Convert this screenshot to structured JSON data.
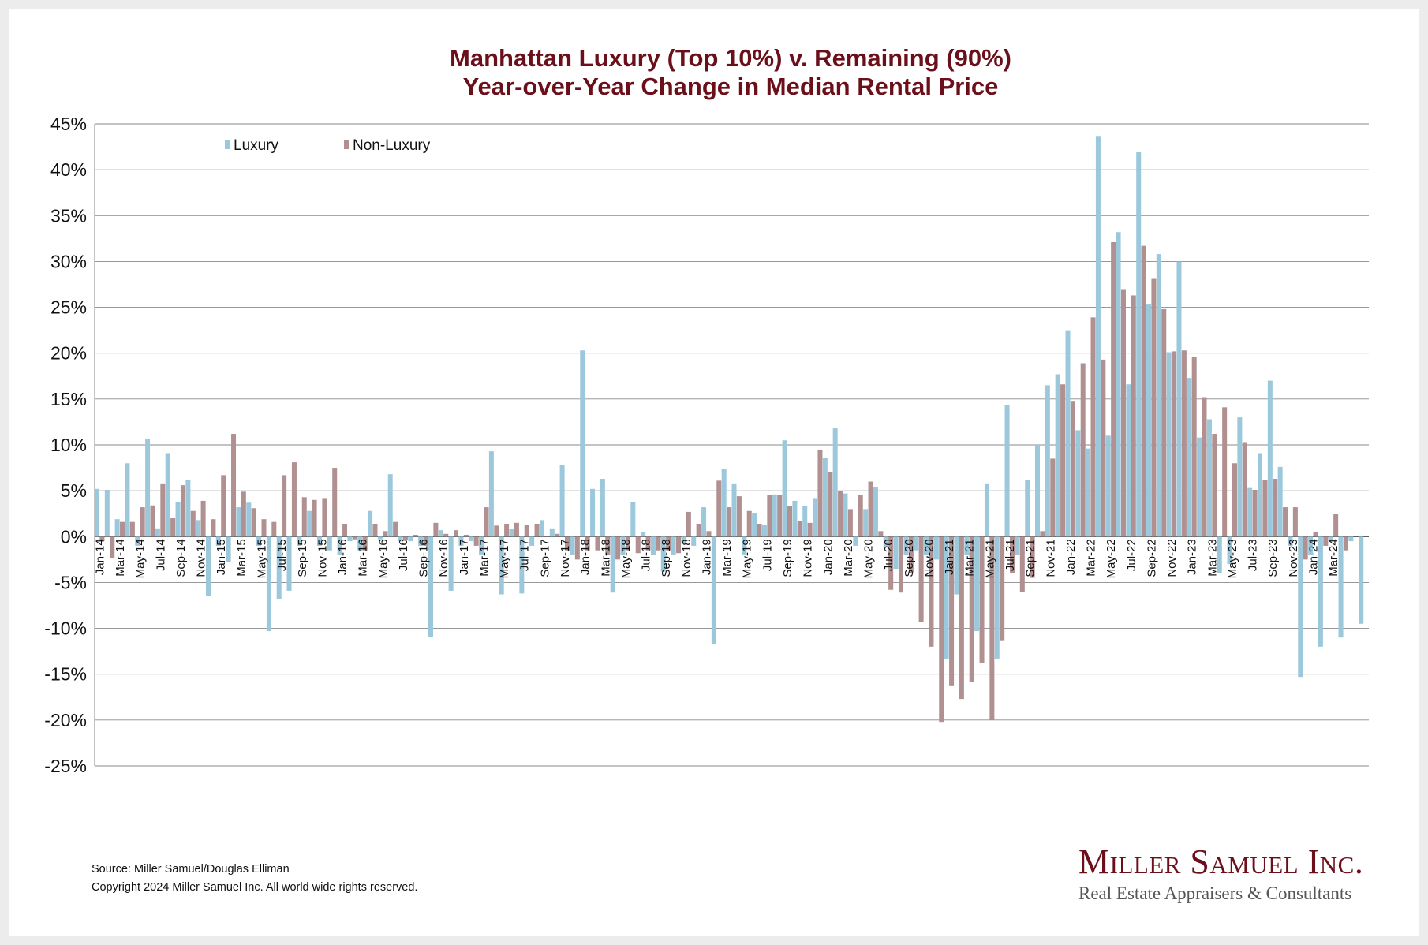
{
  "chart_data": {
    "type": "bar",
    "title": "Manhattan Luxury (Top 10%) v. Remaining (90%)",
    "subtitle": "Year-over-Year Change in Median Rental Price",
    "xlabel": "",
    "ylabel": "",
    "ylim": [
      -25,
      45
    ],
    "yticks": [
      "45%",
      "40%",
      "35%",
      "30%",
      "25%",
      "20%",
      "15%",
      "10%",
      "5%",
      "0%",
      "-5%",
      "-10%",
      "-15%",
      "-20%",
      "-25%"
    ],
    "grid": true,
    "legend_position": "top-left",
    "tick_labels": [
      "Jan-14",
      "Mar-14",
      "May-14",
      "Jul-14",
      "Sep-14",
      "Nov-14",
      "Jan-15",
      "Mar-15",
      "May-15",
      "Jul-15",
      "Sep-15",
      "Nov-15",
      "Jan-16",
      "Mar-16",
      "May-16",
      "Jul-16",
      "Sep-16",
      "Nov-16",
      "Jan-17",
      "Mar-17",
      "May-17",
      "Jul-17",
      "Sep-17",
      "Nov-17",
      "Jan-18",
      "Mar-18",
      "May-18",
      "Jul-18",
      "Sep-18",
      "Nov-18",
      "Jan-19",
      "Mar-19",
      "May-19",
      "Jul-19",
      "Sep-19",
      "Nov-19",
      "Jan-20",
      "Mar-20",
      "May-20",
      "Jul-20",
      "Sep-20",
      "Nov-20",
      "Jan-21",
      "Mar-21",
      "May-21",
      "Jul-21",
      "Sep-21",
      "Nov-21",
      "Jan-22",
      "Mar-22",
      "May-22",
      "Jul-22",
      "Sep-22",
      "Nov-22",
      "Jan-23",
      "Mar-23",
      "May-23",
      "Jul-23",
      "Sep-23",
      "Nov-23",
      "Jan-24",
      "Mar-24"
    ],
    "series": [
      {
        "name": "Luxury",
        "color": "#9cc8dc",
        "values": [
          5.2,
          5.1,
          1.9,
          8.0,
          -1.0,
          10.6,
          0.9,
          9.1,
          3.8,
          6.2,
          1.8,
          -6.5,
          -1.0,
          -2.8,
          3.2,
          3.7,
          -1.0,
          -10.3,
          -6.8,
          -5.9,
          -1.0,
          2.8,
          -1.0,
          -1.5,
          -2.0,
          -0.5,
          -1.5,
          2.8,
          -0.3,
          6.8,
          -0.5,
          -0.5,
          -1.0,
          -10.9,
          0.7,
          -5.9,
          -1.0,
          -0.5,
          -2.0,
          9.3,
          -6.3,
          0.8,
          -6.2,
          -1.0,
          1.8,
          0.9,
          7.8,
          -2.0,
          20.3,
          5.2,
          6.3,
          -6.1,
          -2.0,
          3.8,
          0.5,
          -2.0,
          -3.8,
          -2.0,
          -0.7,
          -1.0,
          3.2,
          -11.7,
          7.4,
          5.8,
          -2.0,
          2.6,
          1.3,
          4.6,
          10.5,
          3.9,
          3.3,
          4.2,
          8.6,
          11.8,
          4.7,
          -1.0,
          3.0,
          5.4,
          -1.2,
          -3.5,
          -2.0,
          -1.5,
          -2.0,
          -2.5,
          -13.3,
          -6.3,
          -2.0,
          -10.3,
          5.8,
          -13.3,
          14.3,
          -2.0,
          6.2,
          10.0,
          16.5,
          17.7,
          22.5,
          11.6,
          9.6,
          43.6,
          11.0,
          33.2,
          16.6,
          41.9,
          25.3,
          30.8,
          20.1,
          30.0,
          17.3,
          10.8,
          12.8,
          -4.0,
          -3.0,
          13.0,
          5.3,
          9.1,
          17.0,
          7.6,
          -1.0,
          -15.3,
          -2.0,
          -12.0,
          -0.5,
          -11.0,
          -0.5,
          -9.5
        ]
      },
      {
        "name": "Non-Luxury",
        "color": "#b09090",
        "values": [
          -0.5,
          -2.3,
          1.6,
          1.6,
          3.2,
          3.4,
          5.8,
          2.0,
          5.6,
          2.8,
          3.9,
          1.9,
          6.7,
          11.2,
          4.9,
          3.1,
          1.9,
          1.6,
          6.7,
          8.1,
          4.3,
          4.0,
          4.2,
          7.5,
          1.4,
          -0.3,
          -1.5,
          1.4,
          0.6,
          1.6,
          -0.4,
          0.2,
          -1.0,
          1.5,
          0.3,
          0.7,
          0.2,
          -1.0,
          3.2,
          1.2,
          1.4,
          1.5,
          1.3,
          1.4,
          0.1,
          0.3,
          -1.5,
          -2.5,
          -1.5,
          -1.5,
          -2.0,
          -2.5,
          -1.5,
          -1.8,
          -1.5,
          -1.5,
          -1.5,
          -1.8,
          2.7,
          1.4,
          0.6,
          6.1,
          3.2,
          4.4,
          2.8,
          1.4,
          4.5,
          4.5,
          3.3,
          1.7,
          1.5,
          9.4,
          7.0,
          5.0,
          3.0,
          4.5,
          6.0,
          0.6,
          -5.8,
          -6.1,
          -4.0,
          -9.3,
          -12.0,
          -20.2,
          -16.3,
          -17.7,
          -15.8,
          -13.8,
          -20.0,
          -11.3,
          -4.0,
          -6.0,
          -4.5,
          0.6,
          8.5,
          16.6,
          14.8,
          18.9,
          23.9,
          19.3,
          32.1,
          26.9,
          26.3,
          31.7,
          28.1,
          24.8,
          20.2,
          20.3,
          19.6,
          15.2,
          11.2,
          14.1,
          8.0,
          10.3,
          5.1,
          6.2,
          6.3,
          3.2,
          3.2,
          -2.5,
          0.5,
          -1.0,
          2.5,
          -1.5
        ]
      }
    ]
  },
  "legend": {
    "luxury_label": "Luxury",
    "non_luxury_label": "Non-Luxury"
  },
  "footer": {
    "source": "Source: Miller Samuel/Douglas Elliman",
    "copyright": "Copyright 2024 Miller Samuel Inc.  All world wide rights reserved."
  },
  "logo": {
    "name": "Miller Samuel Inc.",
    "tagline": "Real Estate Appraisers & Consultants"
  }
}
